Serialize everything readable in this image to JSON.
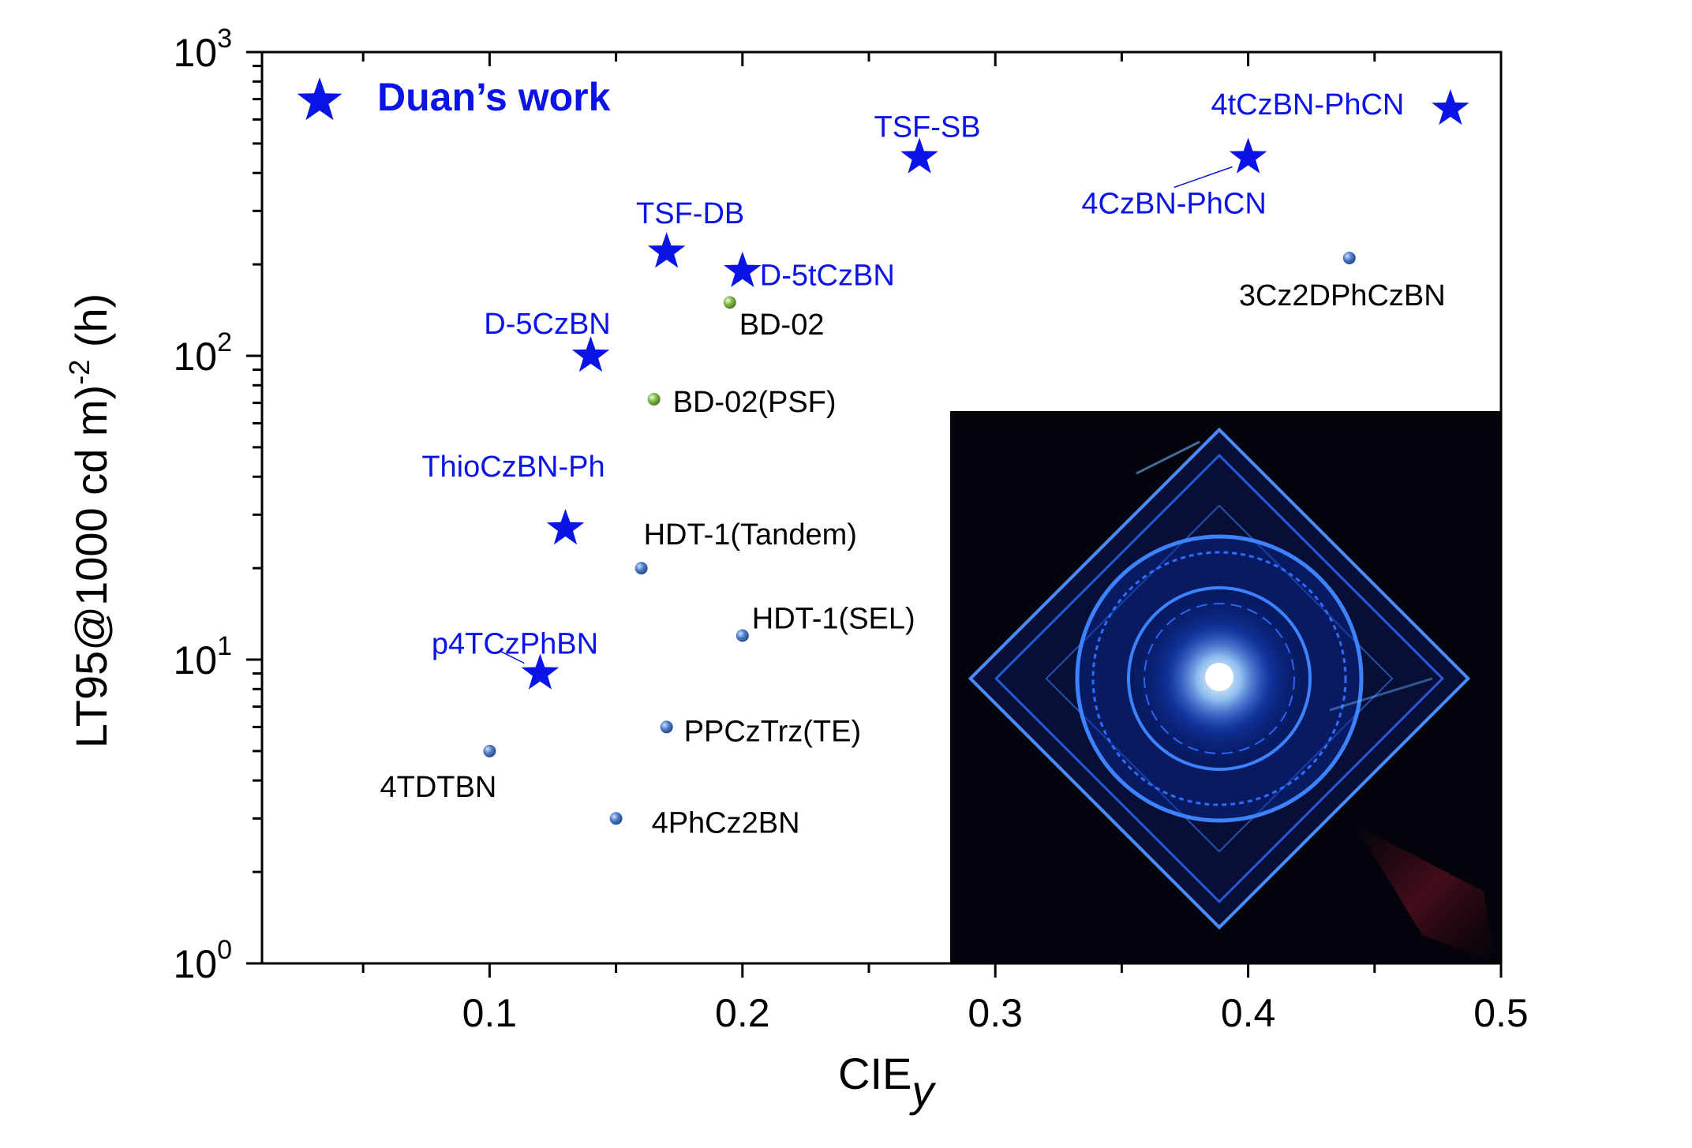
{
  "chart_data": {
    "type": "scatter",
    "title": "",
    "xlabel": "CIE",
    "xlabel_sub": "y",
    "ylabel": "LT95@1000 cd m)",
    "ylabel_sup": "-2",
    "ylabel_suffix": " (h)",
    "xlim": [
      0.01,
      0.5
    ],
    "ylim": [
      1,
      1000
    ],
    "yscale": "log",
    "xticks": [
      "0.1",
      "0.2",
      "0.3",
      "0.4",
      "0.5"
    ],
    "yticks": [
      {
        "base": "10",
        "exp": "0",
        "value": 1
      },
      {
        "base": "10",
        "exp": "1",
        "value": 10
      },
      {
        "base": "10",
        "exp": "2",
        "value": 100
      },
      {
        "base": "10",
        "exp": "3",
        "value": 1000
      }
    ],
    "grid": false,
    "legend": {
      "label": "Duan’s work",
      "position": "top-left"
    },
    "colors": {
      "duan": "#0a14e6",
      "blue_ball": "#3f6fb8",
      "green_ball": "#7fb545",
      "inset_bg": "#03040c"
    },
    "series": [
      {
        "name": "Duan’s work",
        "marker": "star",
        "points": [
          {
            "x": 0.12,
            "y": 9,
            "label": "p4TCzPhBN"
          },
          {
            "x": 0.13,
            "y": 27,
            "label": "ThioCzBN-Ph"
          },
          {
            "x": 0.14,
            "y": 100,
            "label": "D-5CzBN"
          },
          {
            "x": 0.17,
            "y": 220,
            "label": "TSF-DB"
          },
          {
            "x": 0.2,
            "y": 190,
            "label": "D-5tCzBN"
          },
          {
            "x": 0.27,
            "y": 450,
            "label": "TSF-SB"
          },
          {
            "x": 0.4,
            "y": 450,
            "label": "4CzBN-PhCN"
          },
          {
            "x": 0.48,
            "y": 650,
            "label": "4tCzBN-PhCN"
          }
        ]
      },
      {
        "marker": "blue-ball",
        "points": [
          {
            "x": 0.1,
            "y": 5,
            "label": "4TDTBN"
          },
          {
            "x": 0.15,
            "y": 3,
            "label": "4PhCz2BN"
          },
          {
            "x": 0.16,
            "y": 20,
            "label": "HDT-1(Tandem)"
          },
          {
            "x": 0.17,
            "y": 6,
            "label": "PPCzTrz(TE)"
          },
          {
            "x": 0.2,
            "y": 12,
            "label": "HDT-1(SEL)"
          },
          {
            "x": 0.44,
            "y": 210,
            "label": "3Cz2DPhCzBN"
          }
        ]
      },
      {
        "marker": "green-ball",
        "points": [
          {
            "x": 0.165,
            "y": 72,
            "label": "BD-02(PSF)"
          },
          {
            "x": 0.195,
            "y": 150,
            "label": "BD-02"
          }
        ]
      }
    ],
    "inset": {
      "description": "photo",
      "position": "bottom-right"
    }
  }
}
